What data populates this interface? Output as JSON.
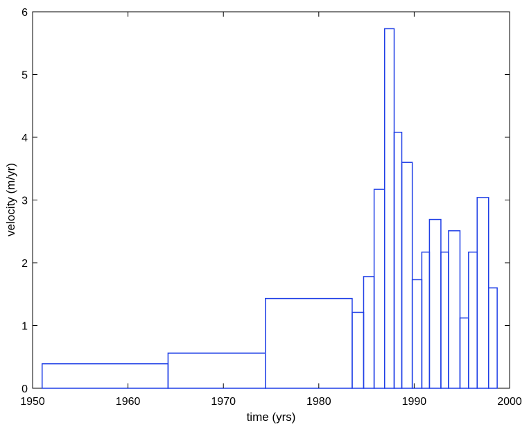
{
  "chart_data": {
    "type": "bar",
    "title": "",
    "xlabel": "time (yrs)",
    "ylabel": "velocity (m/yr)",
    "xlim": [
      1950,
      2000
    ],
    "ylim": [
      0,
      6
    ],
    "xticks": [
      "1950",
      "1960",
      "1970",
      "1980",
      "1990",
      "2000"
    ],
    "yticks": [
      "0",
      "1",
      "2",
      "3",
      "4",
      "5",
      "6"
    ],
    "grid": false,
    "bar_color": "#1f3fe6",
    "series": [
      {
        "bins": [
          {
            "start": 1951,
            "end": 1964.2,
            "value": 0.39
          },
          {
            "start": 1964.2,
            "end": 1974.4,
            "value": 0.56
          },
          {
            "start": 1974.4,
            "end": 1983.5,
            "value": 1.43
          },
          {
            "start": 1983.5,
            "end": 1984.7,
            "value": 1.21
          },
          {
            "start": 1984.7,
            "end": 1985.8,
            "value": 1.78
          },
          {
            "start": 1985.8,
            "end": 1986.9,
            "value": 3.17
          },
          {
            "start": 1986.9,
            "end": 1987.9,
            "value": 5.73
          },
          {
            "start": 1987.9,
            "end": 1988.7,
            "value": 4.08
          },
          {
            "start": 1988.7,
            "end": 1989.8,
            "value": 3.6
          },
          {
            "start": 1989.8,
            "end": 1990.8,
            "value": 1.73
          },
          {
            "start": 1990.8,
            "end": 1991.6,
            "value": 2.17
          },
          {
            "start": 1991.6,
            "end": 1992.8,
            "value": 2.69
          },
          {
            "start": 1992.8,
            "end": 1993.6,
            "value": 2.17
          },
          {
            "start": 1993.6,
            "end": 1994.8,
            "value": 2.51
          },
          {
            "start": 1994.8,
            "end": 1995.7,
            "value": 1.12
          },
          {
            "start": 1995.7,
            "end": 1996.6,
            "value": 2.17
          },
          {
            "start": 1996.6,
            "end": 1997.8,
            "value": 3.04
          },
          {
            "start": 1997.8,
            "end": 1998.7,
            "value": 1.6
          }
        ]
      }
    ]
  }
}
